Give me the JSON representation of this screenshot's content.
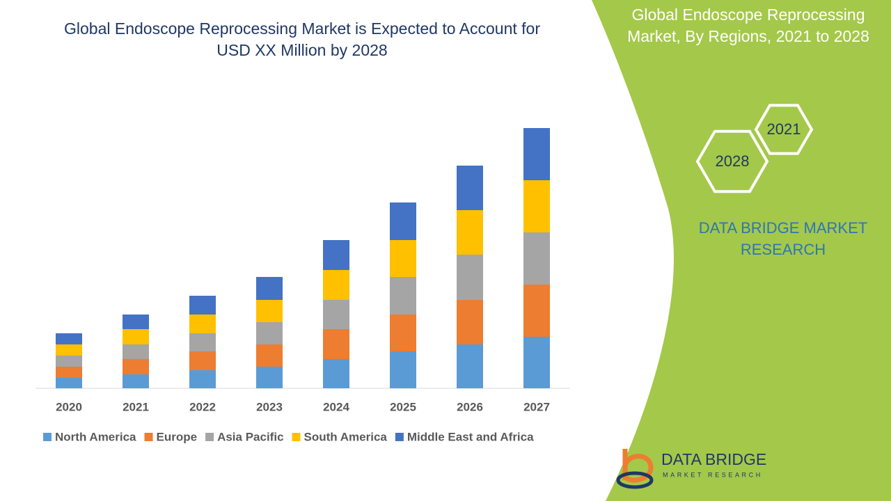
{
  "chart_data": {
    "type": "stacked_bar",
    "title": "Global Endoscope Reprocessing Market is Expected to Account for USD XX Million by 2028",
    "categories": [
      "2020",
      "2021",
      "2022",
      "2023",
      "2024",
      "2025",
      "2026",
      "2027"
    ],
    "series": [
      {
        "name": "North America",
        "color": "#5b9bd5",
        "values": [
          15,
          20,
          26,
          31,
          42,
          53,
          63,
          74
        ]
      },
      {
        "name": "Europe",
        "color": "#ed7d31",
        "values": [
          16,
          22,
          27,
          32,
          43,
          53,
          64,
          75
        ]
      },
      {
        "name": "Asia Pacific",
        "color": "#a5a5a5",
        "values": [
          16,
          21,
          26,
          32,
          42,
          54,
          65,
          75
        ]
      },
      {
        "name": "South America",
        "color": "#ffc000",
        "values": [
          16,
          22,
          27,
          32,
          43,
          53,
          64,
          75
        ]
      },
      {
        "name": "Middle East and Africa",
        "color": "#4472c4",
        "values": [
          16,
          21,
          27,
          33,
          43,
          54,
          64,
          75
        ]
      }
    ],
    "legend": "bottom"
  },
  "side": {
    "title": "Global Endoscope Reprocessing Market, By Regions, 2021 to 2028",
    "hex_top": "2021",
    "hex_bottom": "2028",
    "brand": "DATA BRIDGE MARKET RESEARCH"
  },
  "logo": {
    "name": "DATA BRIDGE",
    "tagline": "MARKET RESEARCH"
  }
}
